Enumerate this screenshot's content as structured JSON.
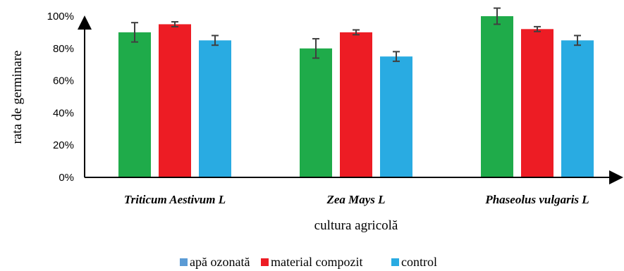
{
  "chart_data": {
    "type": "bar",
    "categories": [
      "Triticum Aestivum L",
      "Zea Mays L",
      "Phaseolus vulgaris L"
    ],
    "series": [
      {
        "name": "apă ozonată",
        "values": [
          0.9,
          0.8,
          1.0
        ],
        "errors": [
          0.06,
          0.06,
          0.05
        ],
        "bar_color": "#1fab4a",
        "legend_color": "#5b9bd5"
      },
      {
        "name": "material compozit",
        "values": [
          0.95,
          0.9,
          0.92
        ],
        "errors": [
          0.015,
          0.015,
          0.015
        ],
        "bar_color": "#ed1c24",
        "legend_color": "#ed1c24"
      },
      {
        "name": "control",
        "values": [
          0.85,
          0.75,
          0.85
        ],
        "errors": [
          0.03,
          0.03,
          0.03
        ],
        "bar_color": "#29abe2",
        "legend_color": "#29abe2"
      }
    ],
    "xlabel": "cultura agricolă",
    "ylabel": "rata de germinare",
    "ylim": [
      0,
      1
    ],
    "yticks": [
      "0%",
      "20%",
      "40%",
      "60%",
      "80%",
      "100%"
    ],
    "grid": false,
    "legend_position": "bottom"
  }
}
